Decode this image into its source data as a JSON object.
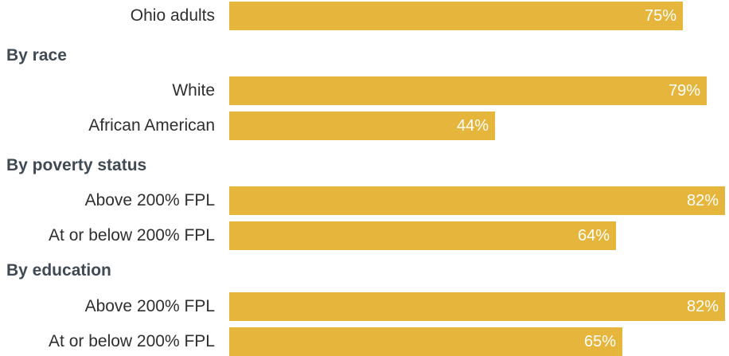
{
  "chart_data": {
    "type": "bar",
    "orientation": "horizontal",
    "bar_color": "#E6B53B",
    "xlim": [
      0,
      100
    ],
    "rows": [
      {
        "kind": "bar",
        "label": "Ohio adults",
        "value": 75,
        "value_label": "75%"
      },
      {
        "kind": "group",
        "label": "By race"
      },
      {
        "kind": "bar",
        "label": "White",
        "value": 79,
        "value_label": "79%"
      },
      {
        "kind": "bar",
        "label": "African American",
        "value": 44,
        "value_label": "44%"
      },
      {
        "kind": "group",
        "label": "By poverty status"
      },
      {
        "kind": "bar",
        "label": "Above 200% FPL",
        "value": 82,
        "value_label": "82%"
      },
      {
        "kind": "bar",
        "label": "At or below 200% FPL",
        "value": 64,
        "value_label": "64%"
      },
      {
        "kind": "group",
        "label": "By education"
      },
      {
        "kind": "bar",
        "label": "Above 200% FPL",
        "value": 82,
        "value_label": "82%"
      },
      {
        "kind": "bar",
        "label": "At or below 200% FPL",
        "value": 65,
        "value_label": "65%"
      }
    ]
  }
}
